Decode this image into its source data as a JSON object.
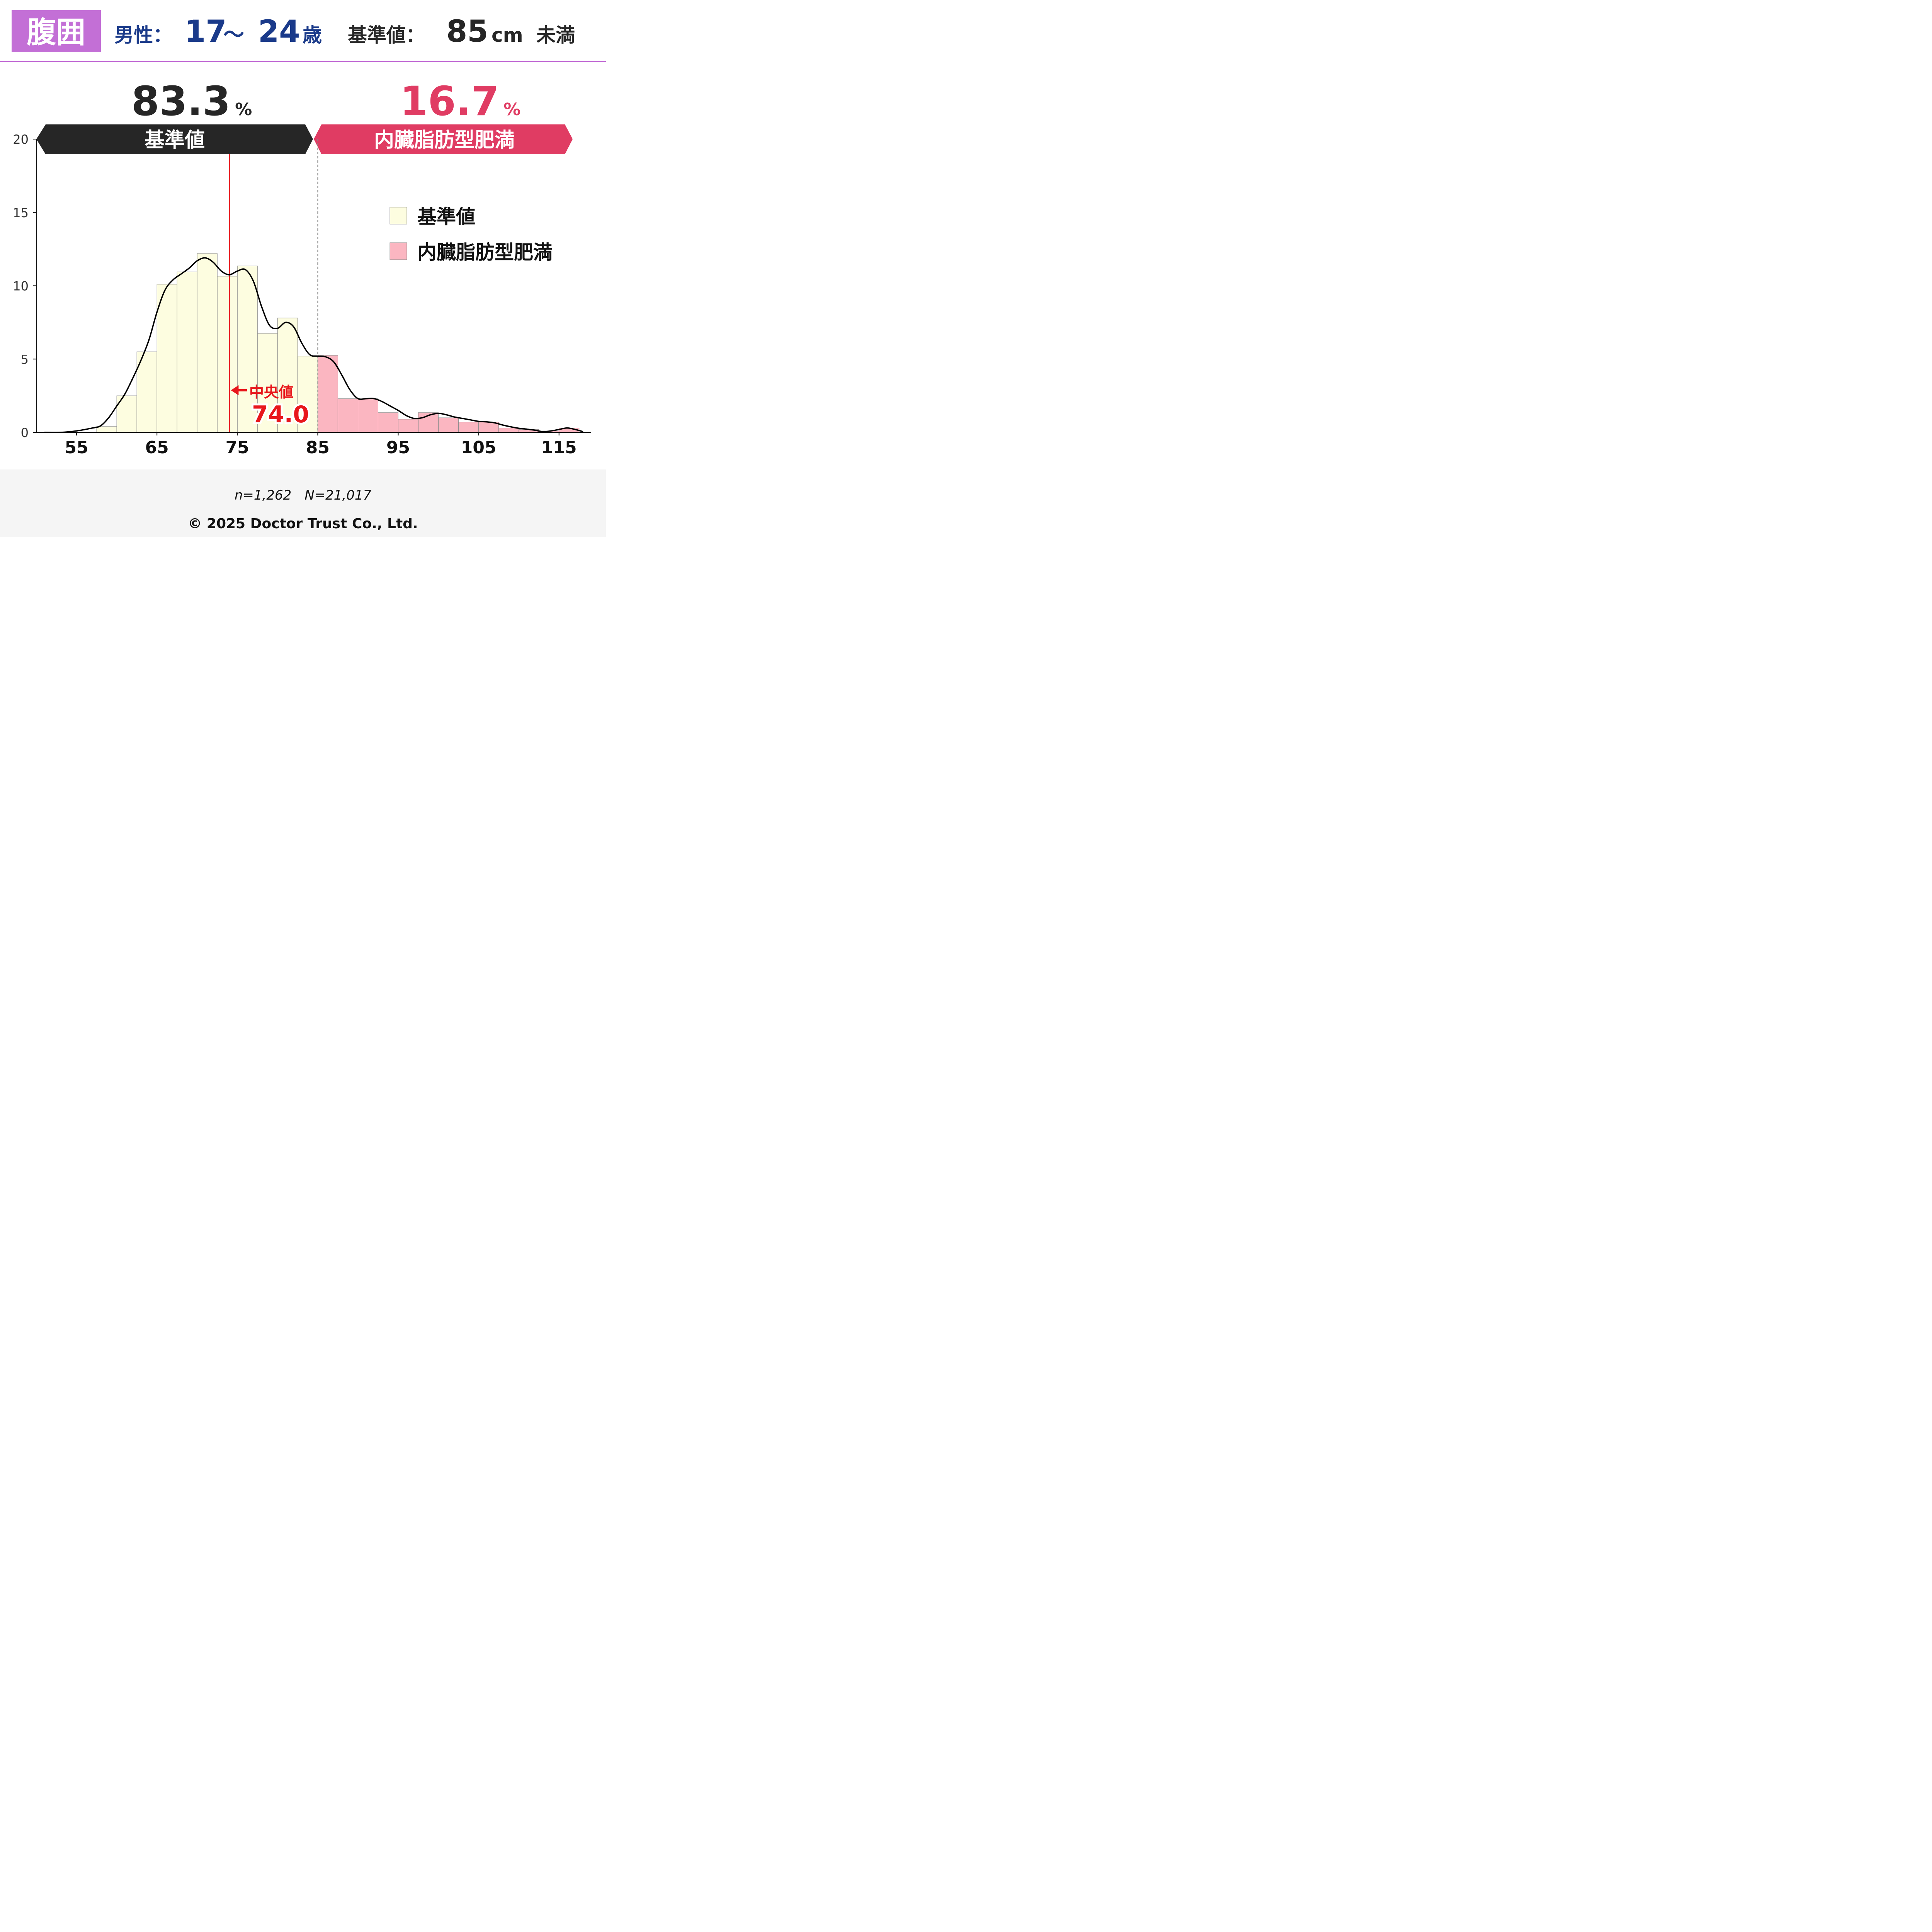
{
  "header": {
    "badge": "腹囲",
    "sex_label": "男性：",
    "age_from": "17",
    "age_sep": "～",
    "age_to": "24",
    "age_unit": "歳",
    "standard_label": "基準値：",
    "standard_value": "85",
    "standard_unit": "cm",
    "standard_suffix": "未満"
  },
  "summary": {
    "left_value": "83.3",
    "left_unit": "%",
    "left_label": "基準値",
    "right_value": "16.7",
    "right_unit": "%",
    "right_label": "内臓脂肪型肥満"
  },
  "legend": {
    "items": [
      {
        "label": "基準値",
        "color": "#fdfde0"
      },
      {
        "label": "内臓脂肪型肥満",
        "color": "#fbb6c1"
      }
    ]
  },
  "median": {
    "label": "中央値",
    "value": "74.0",
    "x": 74.0
  },
  "footer": {
    "sample": "n=1,262　N=21,017",
    "copyright": "© 2025 Doctor Trust Co., Ltd."
  },
  "colors": {
    "badge_bg": "#c36fd6",
    "age_text": "#1a3a8a",
    "dark": "#262626",
    "risk": "#e03c63",
    "normal_fill": "#fdfde0",
    "risk_fill": "#fbb6c1",
    "median_line": "#e8161b",
    "footer_bg": "#f5f5f5"
  },
  "chart_data": {
    "type": "bar",
    "subtype": "histogram with density curve",
    "xlim": [
      50,
      119
    ],
    "ylim": [
      0,
      20
    ],
    "x_ticks": [
      55,
      65,
      75,
      85,
      95,
      105,
      115
    ],
    "y_ticks": [
      0,
      5,
      10,
      15,
      20
    ],
    "threshold": 85,
    "bin_width": 2.5,
    "bins": [
      {
        "start": 57.5,
        "value": 0.4,
        "group": "基準値"
      },
      {
        "start": 60.0,
        "value": 2.5,
        "group": "基準値"
      },
      {
        "start": 62.5,
        "value": 5.5,
        "group": "基準値"
      },
      {
        "start": 65.0,
        "value": 10.1,
        "group": "基準値"
      },
      {
        "start": 67.5,
        "value": 10.95,
        "group": "基準値"
      },
      {
        "start": 70.0,
        "value": 12.2,
        "group": "基準値"
      },
      {
        "start": 72.5,
        "value": 10.65,
        "group": "基準値"
      },
      {
        "start": 75.0,
        "value": 11.35,
        "group": "基準値"
      },
      {
        "start": 77.5,
        "value": 6.75,
        "group": "基準値"
      },
      {
        "start": 80.0,
        "value": 7.8,
        "group": "基準値"
      },
      {
        "start": 82.5,
        "value": 5.2,
        "group": "基準値"
      },
      {
        "start": 85.0,
        "value": 5.25,
        "group": "内臓脂肪型肥満"
      },
      {
        "start": 87.5,
        "value": 2.3,
        "group": "内臓脂肪型肥満"
      },
      {
        "start": 90.0,
        "value": 2.3,
        "group": "内臓脂肪型肥満"
      },
      {
        "start": 92.5,
        "value": 1.35,
        "group": "内臓脂肪型肥満"
      },
      {
        "start": 95.0,
        "value": 0.9,
        "group": "内臓脂肪型肥満"
      },
      {
        "start": 97.5,
        "value": 1.35,
        "group": "内臓脂肪型肥満"
      },
      {
        "start": 100.0,
        "value": 1.0,
        "group": "内臓脂肪型肥満"
      },
      {
        "start": 102.5,
        "value": 0.7,
        "group": "内臓脂肪型肥満"
      },
      {
        "start": 105.0,
        "value": 0.7,
        "group": "内臓脂肪型肥満"
      },
      {
        "start": 107.5,
        "value": 0.3,
        "group": "内臓脂肪型肥満"
      },
      {
        "start": 110.0,
        "value": 0.2,
        "group": "内臓脂肪型肥満"
      },
      {
        "start": 112.5,
        "value": 0.1,
        "group": "内臓脂肪型肥満"
      },
      {
        "start": 115.0,
        "value": 0.3,
        "group": "内臓脂肪型肥満"
      }
    ],
    "density": {
      "x": [
        51,
        53,
        55,
        57,
        58,
        59,
        60,
        61,
        62,
        63,
        64,
        65,
        66,
        67,
        68,
        69,
        70,
        71,
        72,
        73,
        74,
        75,
        76,
        77,
        78,
        79,
        80,
        81,
        82,
        83,
        84,
        85,
        86,
        87,
        88,
        89,
        90,
        91,
        92,
        93,
        94,
        95,
        96,
        97,
        98,
        99,
        100,
        101,
        102,
        103,
        104,
        105,
        106,
        107,
        108,
        109,
        110,
        111,
        112,
        113,
        114,
        115,
        116,
        117,
        118
      ],
      "y": [
        0,
        0,
        0.1,
        0.3,
        0.45,
        1.0,
        1.8,
        2.6,
        3.7,
        4.9,
        6.3,
        8.2,
        9.7,
        10.4,
        10.8,
        11.2,
        11.7,
        11.9,
        11.6,
        11.0,
        10.75,
        11.0,
        11.1,
        10.3,
        8.6,
        7.3,
        7.1,
        7.5,
        7.2,
        6.1,
        5.3,
        5.2,
        5.15,
        4.8,
        3.9,
        2.9,
        2.3,
        2.3,
        2.3,
        2.1,
        1.8,
        1.5,
        1.15,
        0.95,
        1.0,
        1.2,
        1.3,
        1.2,
        1.05,
        0.95,
        0.85,
        0.75,
        0.72,
        0.65,
        0.5,
        0.38,
        0.28,
        0.22,
        0.15,
        0.05,
        0.1,
        0.2,
        0.3,
        0.2,
        0.05
      ]
    }
  }
}
